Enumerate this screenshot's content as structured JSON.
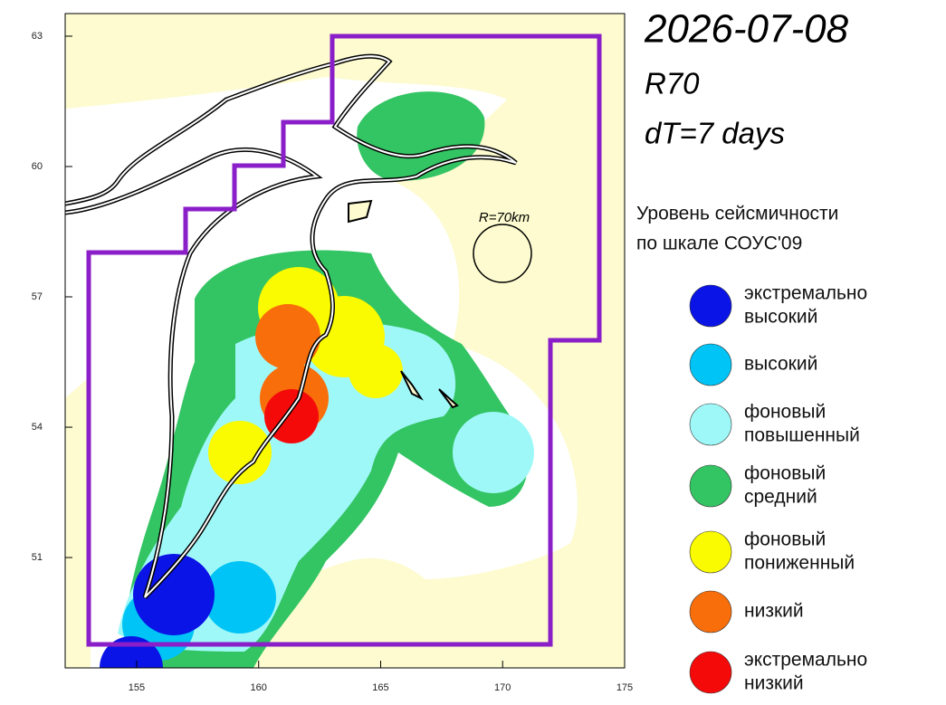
{
  "header": {
    "date": "2026-07-08",
    "region": "R70",
    "period": "dT=7 days"
  },
  "legend": {
    "title": [
      "Уровень сейсмичности",
      "по шкале СОУС'09"
    ],
    "items": [
      {
        "label": [
          "экстремально",
          "высокий"
        ],
        "color": "#0a14e6"
      },
      {
        "label": [
          "высокий"
        ],
        "color": "#00c4f5"
      },
      {
        "label": [
          "фоновый",
          "повышенный"
        ],
        "color": "#9ff8f8"
      },
      {
        "label": [
          "фоновый",
          "средний"
        ],
        "color": "#33c463"
      },
      {
        "label": [
          "фоновый",
          "пониженный"
        ],
        "color": "#fafa00"
      },
      {
        "label": [
          "низкий"
        ],
        "color": "#f86e0a"
      },
      {
        "label": [
          "экстремально",
          "низкий"
        ],
        "color": "#f50a0a"
      }
    ]
  },
  "map": {
    "xlim": [
      152.07,
      175
    ],
    "ylim": [
      48.46,
      63.52
    ],
    "xticks": [
      155,
      160,
      165,
      170,
      175
    ],
    "yticks": [
      51,
      54,
      57,
      60,
      63
    ],
    "circle_label": "R=70km"
  }
}
